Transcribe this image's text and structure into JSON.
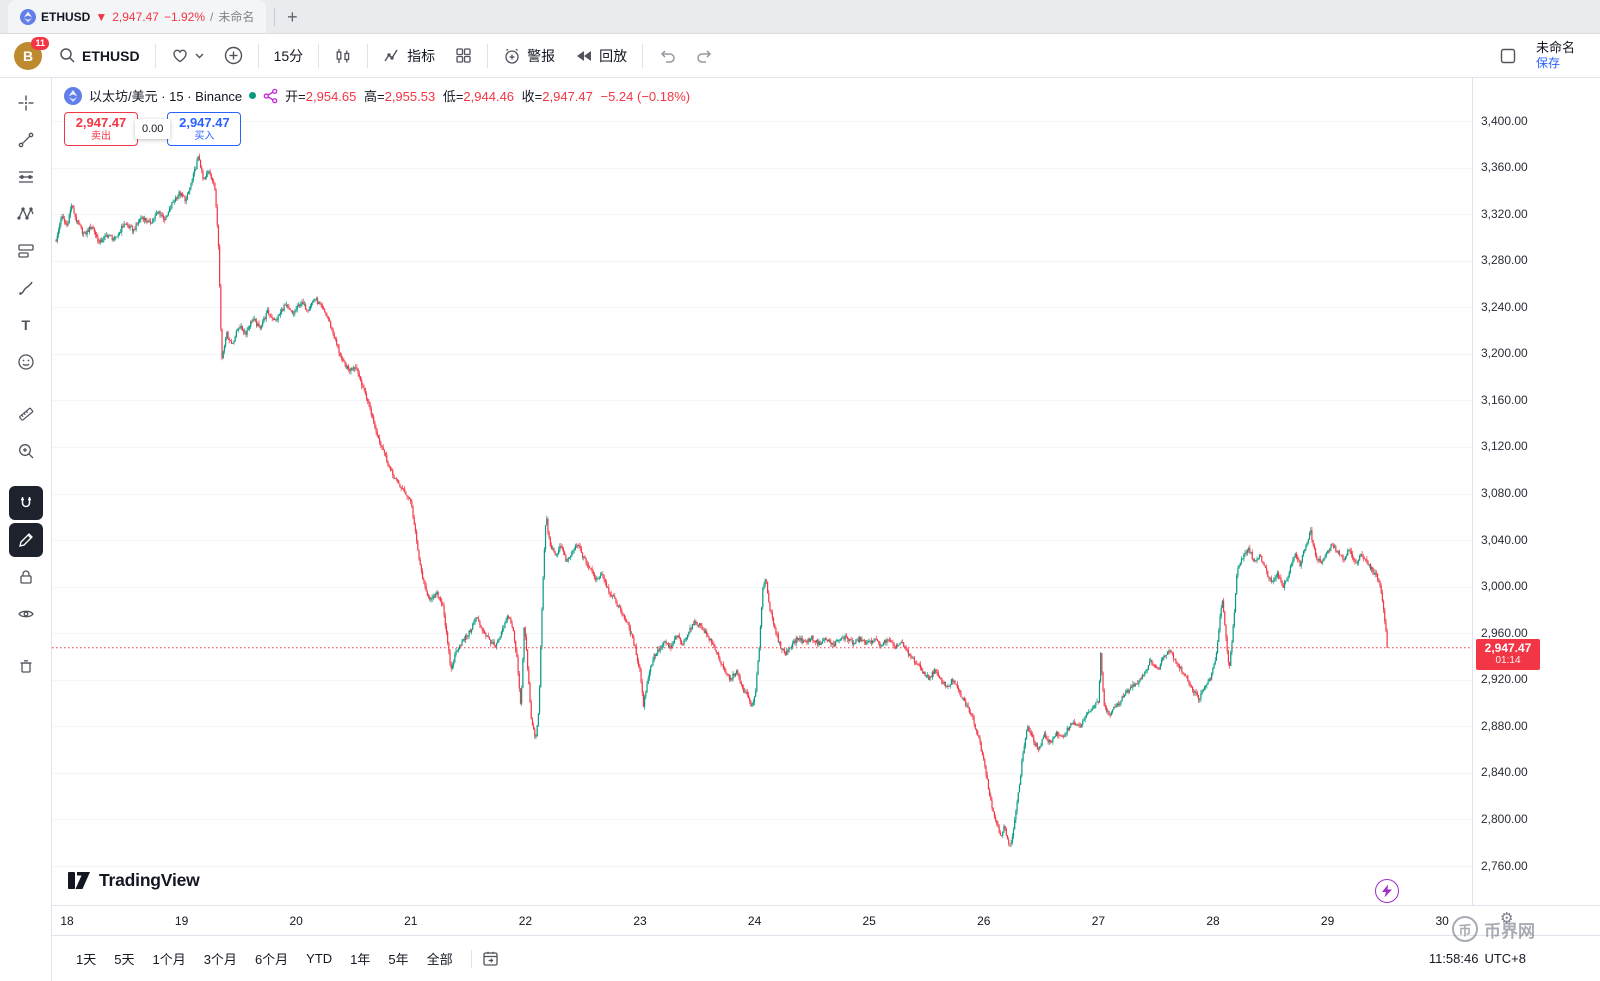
{
  "browser_tab": {
    "symbol": "ETHUSD",
    "direction": "▼",
    "price": "2,947.47",
    "change_pct": "−1.92%",
    "separator": "/",
    "title_suffix": "未命名",
    "new_tab": "+"
  },
  "header_toolbar": {
    "avatar_letter": "B",
    "notification_count": "11",
    "symbol_search": "ETHUSD",
    "interval": "15分",
    "indicators_label": "指标",
    "alerts_label": "警报",
    "replay_label": "回放",
    "layout_name": "未命名",
    "save_label": "保存"
  },
  "left_toolbar": {
    "tools": [
      "crosshair",
      "trend-line",
      "fib-retracement",
      "xabcd-pattern",
      "forecast",
      "brush",
      "text",
      "emoji",
      "ruler",
      "zoom-in",
      "magnet",
      "drawing-mode",
      "lock-all",
      "hide-all",
      "remove-all"
    ],
    "active_tools": [
      "magnet",
      "drawing-mode"
    ]
  },
  "legend": {
    "title": "以太坊/美元 · 15 · Binance",
    "o_label": "开=",
    "o": "2,954.65",
    "h_label": "高=",
    "h": "2,955.53",
    "l_label": "低=",
    "l": "2,944.46",
    "c_label": "收=",
    "c": "2,947.47",
    "change": "−5.24 (−0.18%)"
  },
  "order_panel": {
    "sell_price": "2,947.47",
    "sell_label": "卖出",
    "spread": "0.00",
    "buy_price": "2,947.47",
    "buy_label": "买入"
  },
  "price_tag": {
    "price": "2,947.47",
    "countdown": "01:14"
  },
  "watermarks": {
    "tradingview": "TradingView",
    "site": "币界网",
    "site_logo": "币"
  },
  "bottom_bar": {
    "ranges": [
      "1天",
      "5天",
      "1个月",
      "3个月",
      "6个月",
      "YTD",
      "1年",
      "5年",
      "全部"
    ],
    "clock": "11:58:46",
    "timezone": "UTC+8"
  },
  "icons": {
    "search": "magnifier",
    "favorites": "heart-caret",
    "compare": "plus-circle",
    "chart_type": "candles",
    "indicators": "pulse-line",
    "layout_grid": "grid",
    "alert": "alarm-clock-plus",
    "replay": "rewind",
    "undo": "arrow-undo",
    "redo": "arrow-redo",
    "save_layout": "square",
    "axis_settings": "gear",
    "boost": "lightning",
    "goto_date": "calendar-arrow"
  },
  "chart_data": {
    "type": "candlestick",
    "title": "以太坊/美元 · 15 · Binance",
    "symbol": "ETHUSD",
    "exchange": "Binance",
    "interval_minutes": 15,
    "up_color": "#089981",
    "down_color": "#f23645",
    "ohlc_current": {
      "open": 2954.65,
      "high": 2955.53,
      "low": 2944.46,
      "close": 2947.47,
      "change": -5.24,
      "change_pct": -0.18
    },
    "current_price": 2947.47,
    "y_ticks": [
      3400,
      3360,
      3320,
      3280,
      3240,
      3200,
      3160,
      3120,
      3080,
      3040,
      3000,
      2960,
      2920,
      2880,
      2840,
      2800,
      2760
    ],
    "x_ticks": [
      "18",
      "19",
      "20",
      "21",
      "22",
      "23",
      "24",
      "25",
      "26",
      "27",
      "28",
      "29",
      "30"
    ],
    "candles_per_day": 96,
    "start_day": 17.905,
    "end_day": 29.53,
    "price_path": [
      [
        17.91,
        3298
      ],
      [
        17.95,
        3318
      ],
      [
        18.0,
        3310
      ],
      [
        18.04,
        3328
      ],
      [
        18.08,
        3315
      ],
      [
        18.15,
        3302
      ],
      [
        18.22,
        3310
      ],
      [
        18.28,
        3295
      ],
      [
        18.35,
        3302
      ],
      [
        18.42,
        3298
      ],
      [
        18.5,
        3312
      ],
      [
        18.58,
        3306
      ],
      [
        18.65,
        3318
      ],
      [
        18.72,
        3312
      ],
      [
        18.8,
        3322
      ],
      [
        18.86,
        3315
      ],
      [
        18.92,
        3330
      ],
      [
        18.98,
        3338
      ],
      [
        19.04,
        3332
      ],
      [
        19.1,
        3352
      ],
      [
        19.15,
        3370
      ],
      [
        19.19,
        3348
      ],
      [
        19.24,
        3358
      ],
      [
        19.29,
        3342
      ],
      [
        19.32,
        3300
      ],
      [
        19.35,
        3195
      ],
      [
        19.39,
        3218
      ],
      [
        19.44,
        3208
      ],
      [
        19.5,
        3224
      ],
      [
        19.56,
        3218
      ],
      [
        19.62,
        3230
      ],
      [
        19.68,
        3222
      ],
      [
        19.75,
        3236
      ],
      [
        19.82,
        3228
      ],
      [
        19.9,
        3242
      ],
      [
        19.97,
        3234
      ],
      [
        20.04,
        3244
      ],
      [
        20.1,
        3238
      ],
      [
        20.16,
        3248
      ],
      [
        20.22,
        3240
      ],
      [
        20.28,
        3230
      ],
      [
        20.34,
        3212
      ],
      [
        20.4,
        3194
      ],
      [
        20.46,
        3186
      ],
      [
        20.52,
        3190
      ],
      [
        20.58,
        3172
      ],
      [
        20.64,
        3155
      ],
      [
        20.7,
        3132
      ],
      [
        20.76,
        3118
      ],
      [
        20.82,
        3100
      ],
      [
        20.88,
        3090
      ],
      [
        20.94,
        3082
      ],
      [
        21.0,
        3074
      ],
      [
        21.04,
        3046
      ],
      [
        21.08,
        3018
      ],
      [
        21.13,
        2996
      ],
      [
        21.18,
        2988
      ],
      [
        21.23,
        2994
      ],
      [
        21.28,
        2984
      ],
      [
        21.32,
        2952
      ],
      [
        21.35,
        2928
      ],
      [
        21.4,
        2946
      ],
      [
        21.46,
        2954
      ],
      [
        21.52,
        2962
      ],
      [
        21.57,
        2974
      ],
      [
        21.62,
        2964
      ],
      [
        21.68,
        2955
      ],
      [
        21.74,
        2948
      ],
      [
        21.8,
        2962
      ],
      [
        21.85,
        2976
      ],
      [
        21.89,
        2964
      ],
      [
        21.93,
        2935
      ],
      [
        21.96,
        2896
      ],
      [
        21.99,
        2968
      ],
      [
        22.02,
        2930
      ],
      [
        22.05,
        2886
      ],
      [
        22.09,
        2868
      ],
      [
        22.12,
        2900
      ],
      [
        22.15,
        2998
      ],
      [
        22.18,
        3062
      ],
      [
        22.21,
        3038
      ],
      [
        22.26,
        3026
      ],
      [
        22.31,
        3036
      ],
      [
        22.36,
        3020
      ],
      [
        22.41,
        3030
      ],
      [
        22.46,
        3036
      ],
      [
        22.51,
        3024
      ],
      [
        22.56,
        3016
      ],
      [
        22.62,
        3006
      ],
      [
        22.67,
        3012
      ],
      [
        22.72,
        2998
      ],
      [
        22.78,
        2988
      ],
      [
        22.84,
        2978
      ],
      [
        22.9,
        2966
      ],
      [
        22.95,
        2950
      ],
      [
        23.0,
        2928
      ],
      [
        23.03,
        2898
      ],
      [
        23.07,
        2922
      ],
      [
        23.12,
        2940
      ],
      [
        23.17,
        2946
      ],
      [
        23.22,
        2952
      ],
      [
        23.27,
        2947
      ],
      [
        23.32,
        2958
      ],
      [
        23.37,
        2950
      ],
      [
        23.43,
        2963
      ],
      [
        23.49,
        2970
      ],
      [
        23.55,
        2964
      ],
      [
        23.61,
        2954
      ],
      [
        23.67,
        2944
      ],
      [
        23.73,
        2928
      ],
      [
        23.79,
        2920
      ],
      [
        23.84,
        2928
      ],
      [
        23.89,
        2913
      ],
      [
        23.94,
        2906
      ],
      [
        23.98,
        2896
      ],
      [
        24.01,
        2910
      ],
      [
        24.04,
        2948
      ],
      [
        24.07,
        2998
      ],
      [
        24.1,
        3008
      ],
      [
        24.13,
        2982
      ],
      [
        24.17,
        2965
      ],
      [
        24.22,
        2950
      ],
      [
        24.27,
        2942
      ],
      [
        24.32,
        2950
      ],
      [
        24.38,
        2956
      ],
      [
        24.44,
        2952
      ],
      [
        24.5,
        2956
      ],
      [
        24.56,
        2951
      ],
      [
        24.62,
        2955
      ],
      [
        24.68,
        2950
      ],
      [
        24.74,
        2954
      ],
      [
        24.8,
        2957
      ],
      [
        24.86,
        2951
      ],
      [
        24.92,
        2955
      ],
      [
        24.98,
        2951
      ],
      [
        25.04,
        2955
      ],
      [
        25.1,
        2950
      ],
      [
        25.16,
        2954
      ],
      [
        25.22,
        2948
      ],
      [
        25.28,
        2952
      ],
      [
        25.34,
        2942
      ],
      [
        25.4,
        2936
      ],
      [
        25.46,
        2928
      ],
      [
        25.52,
        2921
      ],
      [
        25.57,
        2928
      ],
      [
        25.62,
        2920
      ],
      [
        25.68,
        2914
      ],
      [
        25.73,
        2920
      ],
      [
        25.79,
        2908
      ],
      [
        25.85,
        2898
      ],
      [
        25.9,
        2888
      ],
      [
        25.95,
        2872
      ],
      [
        26.0,
        2852
      ],
      [
        26.04,
        2828
      ],
      [
        26.08,
        2806
      ],
      [
        26.12,
        2795
      ],
      [
        26.15,
        2786
      ],
      [
        26.18,
        2794
      ],
      [
        26.21,
        2780
      ],
      [
        26.24,
        2778
      ],
      [
        26.27,
        2802
      ],
      [
        26.31,
        2828
      ],
      [
        26.34,
        2856
      ],
      [
        26.38,
        2880
      ],
      [
        26.43,
        2868
      ],
      [
        26.48,
        2860
      ],
      [
        26.53,
        2872
      ],
      [
        26.58,
        2866
      ],
      [
        26.63,
        2874
      ],
      [
        26.68,
        2869
      ],
      [
        26.73,
        2878
      ],
      [
        26.78,
        2884
      ],
      [
        26.83,
        2879
      ],
      [
        26.88,
        2887
      ],
      [
        26.94,
        2894
      ],
      [
        27.0,
        2902
      ],
      [
        27.02,
        2942
      ],
      [
        27.05,
        2896
      ],
      [
        27.1,
        2890
      ],
      [
        27.16,
        2898
      ],
      [
        27.22,
        2906
      ],
      [
        27.28,
        2913
      ],
      [
        27.34,
        2918
      ],
      [
        27.4,
        2926
      ],
      [
        27.46,
        2936
      ],
      [
        27.52,
        2928
      ],
      [
        27.57,
        2941
      ],
      [
        27.62,
        2946
      ],
      [
        27.67,
        2937
      ],
      [
        27.72,
        2929
      ],
      [
        27.78,
        2920
      ],
      [
        27.83,
        2910
      ],
      [
        27.88,
        2904
      ],
      [
        27.93,
        2914
      ],
      [
        27.98,
        2922
      ],
      [
        28.02,
        2936
      ],
      [
        28.05,
        2962
      ],
      [
        28.08,
        2990
      ],
      [
        28.11,
        2958
      ],
      [
        28.14,
        2928
      ],
      [
        28.17,
        2958
      ],
      [
        28.21,
        3012
      ],
      [
        28.26,
        3026
      ],
      [
        28.31,
        3033
      ],
      [
        28.36,
        3021
      ],
      [
        28.41,
        3028
      ],
      [
        28.46,
        3014
      ],
      [
        28.51,
        3004
      ],
      [
        28.56,
        3012
      ],
      [
        28.61,
        3000
      ],
      [
        28.66,
        3011
      ],
      [
        28.71,
        3028
      ],
      [
        28.76,
        3019
      ],
      [
        28.81,
        3036
      ],
      [
        28.85,
        3048
      ],
      [
        28.89,
        3028
      ],
      [
        28.94,
        3020
      ],
      [
        28.99,
        3028
      ],
      [
        29.04,
        3036
      ],
      [
        29.09,
        3029
      ],
      [
        29.14,
        3024
      ],
      [
        29.19,
        3032
      ],
      [
        29.24,
        3019
      ],
      [
        29.29,
        3028
      ],
      [
        29.34,
        3021
      ],
      [
        29.39,
        3014
      ],
      [
        29.44,
        3008
      ],
      [
        29.48,
        2988
      ],
      [
        29.52,
        2950
      ],
      [
        29.53,
        2947.47
      ]
    ]
  }
}
